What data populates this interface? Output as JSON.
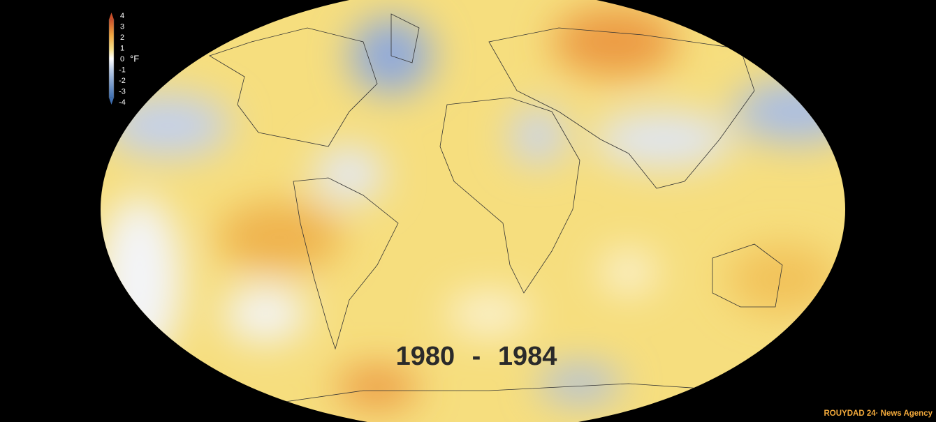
{
  "legend": {
    "ticks": [
      4,
      3,
      2,
      1,
      0,
      -1,
      -2,
      -3,
      -4
    ],
    "unit": "°F"
  },
  "period": "1980 - 1984",
  "watermark": "ROUYDAD 24· News Agency"
}
